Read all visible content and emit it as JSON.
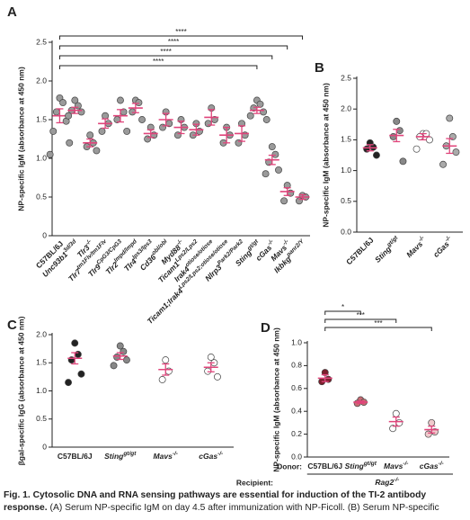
{
  "caption": {
    "title": "Fig. 1. Cytosolic DNA and RNA sensing pathways are essential for induction of the TI-2 antibody response.",
    "text": "(A) Serum NP-specific IgM on day 4.5 after immunization with NP-Ficoll. (B) Serum NP-specific"
  },
  "chart_data": [
    {
      "type": "strip",
      "panel": "A",
      "ylabel": "NP-specific IgM (absorbance at 450 nm)",
      "ylim": [
        0,
        2.5
      ],
      "yticks": [
        0,
        0.5,
        {
          "value": 1,
          "label": "1.0"
        },
        1.5,
        {
          "value": 2,
          "label": "2.0"
        },
        2.5
      ],
      "mean_color": "#e0457b",
      "groups": [
        {
          "name": "C57BL/6J",
          "sup": null,
          "color": "#9a9a9a",
          "points": [
            1.78,
            1.72,
            1.6,
            1.48,
            1.35,
            1.2,
            1.05
          ],
          "mean": 1.55,
          "sem": 0.09
        },
        {
          "name": "Unc93b1",
          "sup": "3d/3d",
          "color": "#9a9a9a",
          "points": [
            1.75,
            1.68,
            1.62,
            1.6,
            1.55
          ],
          "mean": 1.62,
          "sem": 0.04
        },
        {
          "name": "Tlr3",
          "sup": "-/-",
          "color": "#9a9a9a",
          "points": [
            1.3,
            1.2,
            1.15,
            1.1
          ],
          "mean": 1.2,
          "sem": 0.05
        },
        {
          "name": "Tlr7",
          "sup": "tm1Flv/tm1Flv",
          "color": "#9a9a9a",
          "points": [
            1.55,
            1.45,
            1.35
          ],
          "mean": 1.45,
          "sem": 0.06
        },
        {
          "name": "Tlr9",
          "sup": "CpG3/CpG3",
          "color": "#9a9a9a",
          "points": [
            1.75,
            1.6,
            1.5,
            1.35
          ],
          "mean": 1.55,
          "sem": 0.08
        },
        {
          "name": "Tlr2",
          "sup": "lmpd/lmpd",
          "color": "#9a9a9a",
          "points": [
            1.75,
            1.72,
            1.6,
            1.5
          ],
          "mean": 1.65,
          "sem": 0.06
        },
        {
          "name": "Tlr4",
          "sup": "lps3/lps3",
          "color": "#9a9a9a",
          "points": [
            1.4,
            1.3,
            1.25
          ],
          "mean": 1.32,
          "sem": 0.05
        },
        {
          "name": "Cd36",
          "sup": "obl/obl",
          "color": "#9a9a9a",
          "points": [
            1.6,
            1.45,
            1.4
          ],
          "mean": 1.5,
          "sem": 0.08
        },
        {
          "name": "Myd88",
          "sup": "-/-",
          "color": "#9a9a9a",
          "points": [
            1.5,
            1.4,
            1.3
          ],
          "mean": 1.4,
          "sem": 0.08
        },
        {
          "name": "Ticam1",
          "sup": "Lps2/Lps2",
          "color": "#9a9a9a",
          "points": [
            1.45,
            1.35,
            1.3
          ],
          "mean": 1.37,
          "sem": 0.07
        },
        {
          "name": "Irak4",
          "sup": "otiose/otiose",
          "color": "#9a9a9a",
          "points": [
            1.65,
            1.5,
            1.45
          ],
          "mean": 1.53,
          "sem": 0.1
        },
        {
          "name": "Ticam1;Irak4",
          "sup": "Lps2/Lps2;otiose/otiose",
          "color": "#9a9a9a",
          "points": [
            1.4,
            1.3,
            1.2
          ],
          "mean": 1.3,
          "sem": 0.1
        },
        {
          "name": "Nlrp3",
          "sup": "Park2/Park2",
          "color": "#9a9a9a",
          "points": [
            1.45,
            1.3,
            1.2
          ],
          "mean": 1.32,
          "sem": 0.1
        },
        {
          "name": "Sting",
          "sup": "gt/gt",
          "color": "#9a9a9a",
          "points": [
            1.75,
            1.7,
            1.65,
            1.6,
            1.55,
            1.5
          ],
          "mean": 1.62,
          "sem": 0.04
        },
        {
          "name": "cGas",
          "sup": "-/-",
          "color": "#9a9a9a",
          "points": [
            1.15,
            1.05,
            0.95,
            0.85,
            0.8
          ],
          "mean": 0.98,
          "sem": 0.06
        },
        {
          "name": "Mavs",
          "sup": "-/-",
          "color": "#9a9a9a",
          "points": [
            0.65,
            0.55,
            0.45
          ],
          "mean": 0.57,
          "sem": 0.05
        },
        {
          "name": "Ikbkg",
          "sup": "panr2/Y",
          "color": "#9a9a9a",
          "points": [
            0.52,
            0.5,
            0.45
          ],
          "mean": 0.5,
          "sem": 0.03
        }
      ],
      "brackets": [
        {
          "from": 0,
          "to": 16,
          "label": "****"
        },
        {
          "from": 0,
          "to": 15,
          "label": "****"
        },
        {
          "from": 0,
          "to": 14,
          "label": "****"
        },
        {
          "from": 0,
          "to": 13,
          "label": "****"
        }
      ]
    },
    {
      "type": "strip",
      "panel": "B",
      "ylabel": "NP-specific IgM (absorbance at 450 nm)",
      "ylim": [
        0,
        2.5
      ],
      "yticks": [
        {
          "value": 0,
          "label": "0.0"
        },
        0.5,
        {
          "value": 1,
          "label": "1.0"
        },
        1.5,
        {
          "value": 2,
          "label": "2.0"
        },
        2.5
      ],
      "mean_color": "#e0457b",
      "groups": [
        {
          "name": "C57BL/6J",
          "sup": null,
          "color": "#222222",
          "points": [
            1.45,
            1.38,
            1.35,
            1.25
          ],
          "mean": 1.37,
          "sem": 0.05
        },
        {
          "name": "Sting",
          "sup": "gt/gt",
          "color": "#888888",
          "points": [
            1.8,
            1.65,
            1.55,
            1.15
          ],
          "mean": 1.57,
          "sem": 0.1
        },
        {
          "name": "Mavs",
          "sup": "-/-",
          "color": "#ffffff",
          "points": [
            1.6,
            1.6,
            1.55,
            1.5,
            1.35
          ],
          "mean": 1.55,
          "sem": 0.05
        },
        {
          "name": "cGas",
          "sup": "-/-",
          "color": "#aaaaaa",
          "points": [
            1.85,
            1.55,
            1.4,
            1.3,
            1.1
          ],
          "mean": 1.4,
          "sem": 0.12
        }
      ],
      "brackets": []
    },
    {
      "type": "strip",
      "panel": "C",
      "ylabel": "βgal-specific IgG (absorbance at 450 nm)",
      "ylim": [
        0,
        2
      ],
      "yticks": [
        0,
        0.5,
        {
          "value": 1,
          "label": "1.0"
        },
        1.5,
        {
          "value": 2,
          "label": "2.0"
        }
      ],
      "mean_color": "#e0457b",
      "groups": [
        {
          "name": "C57BL/6J",
          "sup": null,
          "color": "#222222",
          "points": [
            1.85,
            1.65,
            1.55,
            1.3,
            1.15
          ],
          "mean": 1.58,
          "sem": 0.1
        },
        {
          "name": "Sting",
          "sup": "gt/gt",
          "color": "#888888",
          "points": [
            1.8,
            1.7,
            1.6,
            1.55,
            1.45
          ],
          "mean": 1.62,
          "sem": 0.06
        },
        {
          "name": "Mavs",
          "sup": "-/-",
          "color": "#ffffff",
          "points": [
            1.55,
            1.35,
            1.2
          ],
          "mean": 1.38,
          "sem": 0.1
        },
        {
          "name": "cGas",
          "sup": "-/-",
          "color": "#ffffff",
          "points": [
            1.6,
            1.5,
            1.35,
            1.25
          ],
          "mean": 1.42,
          "sem": 0.08
        }
      ],
      "brackets": []
    },
    {
      "type": "strip",
      "panel": "D",
      "ylabel": "NP-specific IgM (absorbance at 450 nm)",
      "ylim": [
        0,
        1
      ],
      "yticks": [
        {
          "value": 0,
          "label": "0.0"
        },
        0.2,
        0.4,
        0.6,
        0.8,
        {
          "value": 1,
          "label": "1.0"
        }
      ],
      "mean_color": "#e0457b",
      "donor_label": "Donor:",
      "recipient_label": "Recipient:",
      "recipient": {
        "name": "Rag2",
        "sup": "-/-"
      },
      "groups": [
        {
          "name": "C57BL/6J",
          "sup": null,
          "color": "#7d1f2d",
          "points": [
            0.74,
            0.68,
            0.66
          ],
          "mean": 0.69,
          "sem": 0.03
        },
        {
          "name": "Sting",
          "sup": "gt/gt",
          "color": "#c96a74",
          "points": [
            0.5,
            0.48,
            0.47
          ],
          "mean": 0.48,
          "sem": 0.01
        },
        {
          "name": "Mavs",
          "sup": "-/-",
          "color": "#ffffff",
          "points": [
            0.38,
            0.3,
            0.25
          ],
          "mean": 0.31,
          "sem": 0.04
        },
        {
          "name": "cGas",
          "sup": "-/-",
          "color": "#f0c9cc",
          "points": [
            0.3,
            0.22,
            0.2
          ],
          "mean": 0.24,
          "sem": 0.03
        }
      ],
      "brackets": [
        {
          "from": 0,
          "to": 3,
          "label": "***"
        },
        {
          "from": 0,
          "to": 2,
          "label": "***"
        },
        {
          "from": 0,
          "to": 1,
          "label": "*"
        }
      ]
    }
  ]
}
